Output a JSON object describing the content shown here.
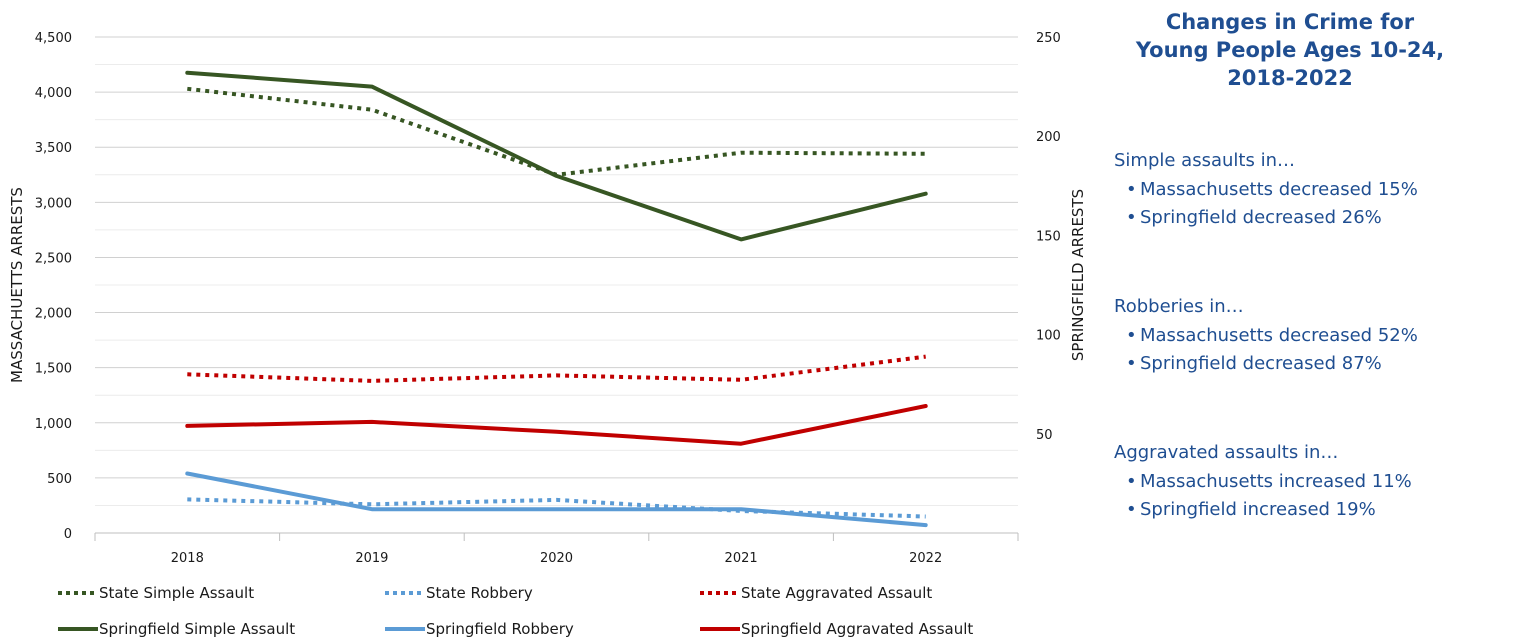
{
  "chart_data": {
    "type": "line",
    "categories": [
      "2018",
      "2019",
      "2020",
      "2021",
      "2022"
    ],
    "left_axis": {
      "label": "MASSACHUETTS ARRESTS",
      "ylim": [
        0,
        4500
      ],
      "ticks": [
        "0",
        "500",
        "1,000",
        "1,500",
        "2,000",
        "2,500",
        "3,000",
        "3,500",
        "4,000",
        "4,500"
      ]
    },
    "right_axis": {
      "label": "SPRINGFIELD ARRESTS",
      "ylim": [
        0,
        250
      ],
      "ticks": [
        "50",
        "100",
        "150",
        "200",
        "250"
      ]
    },
    "grid": true,
    "legend_position": "bottom",
    "series": [
      {
        "name": "State Simple Assault",
        "axis": "left",
        "style": "dotted",
        "color": "#375623",
        "values": [
          4030,
          3840,
          3250,
          3450,
          3440
        ]
      },
      {
        "name": "State Robbery",
        "axis": "left",
        "style": "dotted",
        "color": "#5b9bd5",
        "values": [
          305,
          260,
          300,
          200,
          150
        ]
      },
      {
        "name": "State Aggravated Assault",
        "axis": "left",
        "style": "dotted",
        "color": "#c00000",
        "values": [
          1440,
          1380,
          1430,
          1390,
          1600
        ]
      },
      {
        "name": "Springfield Simple Assault",
        "axis": "right",
        "style": "solid",
        "color": "#375623",
        "values": [
          232,
          225,
          180,
          148,
          171
        ]
      },
      {
        "name": "Springfield  Robbery",
        "axis": "right",
        "style": "solid",
        "color": "#5b9bd5",
        "values": [
          30,
          12,
          12,
          12,
          4
        ]
      },
      {
        "name": "Springfield Aggravated Assault",
        "axis": "right",
        "style": "solid",
        "color": "#c00000",
        "values": [
          54,
          56,
          51,
          45,
          64
        ]
      }
    ]
  },
  "panel": {
    "title_lines": [
      "Changes in Crime for",
      "Young People Ages 10-24,",
      "2018-2022"
    ],
    "groups": [
      {
        "heading": "Simple assaults in…",
        "bullets": [
          "Massachusetts decreased 15%",
          "Springfield decreased 26%"
        ]
      },
      {
        "heading": "Robberies in…",
        "bullets": [
          "Massachusetts decreased 52%",
          "Springfield decreased 87%"
        ]
      },
      {
        "heading": "Aggravated assaults in…",
        "bullets": [
          "Massachusetts increased 11%",
          "Springfield increased 19%"
        ]
      }
    ],
    "bullet_char": "•"
  }
}
